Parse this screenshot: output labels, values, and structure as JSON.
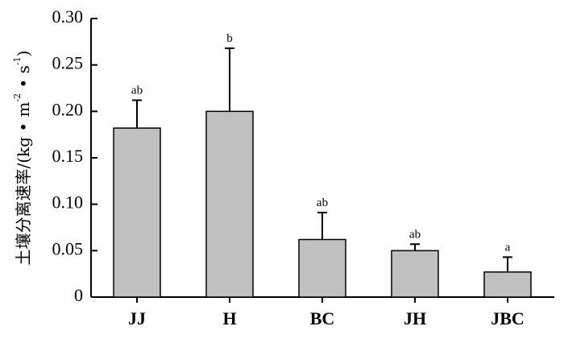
{
  "chart_data": {
    "type": "bar",
    "categories": [
      "JJ",
      "H",
      "BC",
      "JH",
      "JBC"
    ],
    "values": [
      0.182,
      0.2,
      0.062,
      0.05,
      0.027
    ],
    "error_upper": [
      0.212,
      0.268,
      0.091,
      0.057,
      0.043
    ],
    "significance": [
      "ab",
      "b",
      "ab",
      "ab",
      "a"
    ],
    "ylabel": {
      "main": "土壤分离速率/(kg • m",
      "sup1": "-2",
      "mid": " • s",
      "sup2": "-1",
      "end": ")"
    },
    "ylim": [
      0,
      0.3
    ],
    "yticks": [
      0,
      0.05,
      0.1,
      0.15,
      0.2,
      0.25,
      0.3
    ],
    "ytick_labels": [
      "0",
      "0.05",
      "0.10",
      "0.15",
      "0.20",
      "0.25",
      "0.30"
    ],
    "grid": false,
    "colors": {
      "bar": "#c0c0c0",
      "bar_edge": "#000000",
      "axis": "#000000"
    }
  }
}
